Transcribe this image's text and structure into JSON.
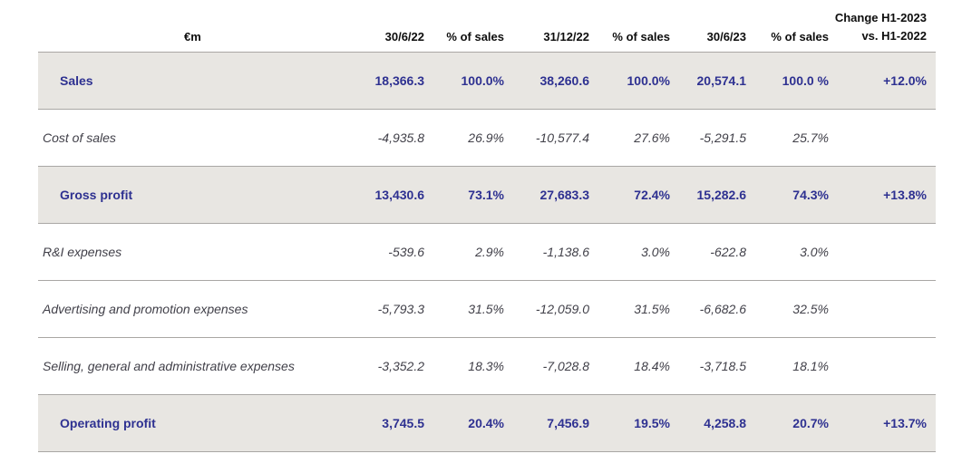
{
  "table": {
    "unit_label": "€m",
    "columns": [
      "30/6/22",
      "% of sales",
      "31/12/22",
      "% of sales",
      "30/6/23",
      "% of sales"
    ],
    "change_header": [
      "Change H1-2023",
      "vs. H1-2022"
    ],
    "rows": [
      {
        "label": "Sales",
        "highlight": true,
        "values": [
          "18,366.3",
          "100.0%",
          "38,260.6",
          "100.0%",
          "20,574.1",
          "100.0 %",
          "+12.0%"
        ]
      },
      {
        "label": "Cost of sales",
        "highlight": false,
        "values": [
          "-4,935.8",
          "26.9%",
          "-10,577.4",
          "27.6%",
          "-5,291.5",
          "25.7%",
          ""
        ]
      },
      {
        "label": "Gross profit",
        "highlight": true,
        "values": [
          "13,430.6",
          "73.1%",
          "27,683.3",
          "72.4%",
          "15,282.6",
          "74.3%",
          "+13.8%"
        ]
      },
      {
        "label": "R&I expenses",
        "highlight": false,
        "values": [
          "-539.6",
          "2.9%",
          "-1,138.6",
          "3.0%",
          "-622.8",
          "3.0%",
          ""
        ]
      },
      {
        "label": "Advertising and promotion expenses",
        "highlight": false,
        "values": [
          "-5,793.3",
          "31.5%",
          "-12,059.0",
          "31.5%",
          "-6,682.6",
          "32.5%",
          ""
        ]
      },
      {
        "label": "Selling, general and administrative expenses",
        "highlight": false,
        "values": [
          "-3,352.2",
          "18.3%",
          "-7,028.8",
          "18.4%",
          "-3,718.5",
          "18.1%",
          ""
        ]
      },
      {
        "label": "Operating profit",
        "highlight": true,
        "values": [
          "3,745.5",
          "20.4%",
          "7,456.9",
          "19.5%",
          "4,258.8",
          "20.7%",
          "+13.7%"
        ]
      }
    ]
  },
  "colors": {
    "highlight_row_bg": "#e8e6e2",
    "highlight_text": "#2e3191",
    "normal_text": "#414049",
    "header_text": "#0d0d0d",
    "divider": "#a9a7a4",
    "page_bg": "#ffffff"
  }
}
